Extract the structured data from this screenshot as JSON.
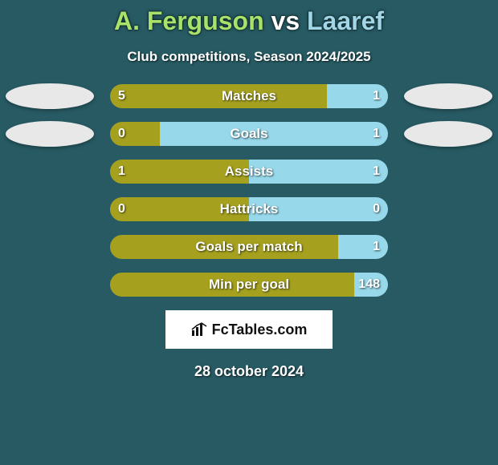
{
  "background_color": "#275a63",
  "title": {
    "player_a": "A. Ferguson",
    "vs": "vs",
    "player_b": "Laaref",
    "color_a": "#a6e36a",
    "color_vs": "#ffffff",
    "color_b": "#a0d6e6"
  },
  "subtitle": "Club competitions, Season 2024/2025",
  "left_color": "#a5a11f",
  "right_color": "#97d8ea",
  "bar_bg_olive": "#a5a11f",
  "bar_bg_blue": "#97d8ea",
  "avatars": {
    "rows_left": [
      0,
      1
    ],
    "rows_right": [
      0,
      1
    ]
  },
  "stats": [
    {
      "label": "Matches",
      "left_val": "5",
      "right_val": "1",
      "left_pct": 78,
      "right_pct": 22
    },
    {
      "label": "Goals",
      "left_val": "0",
      "right_val": "1",
      "left_pct": 18,
      "right_pct": 82
    },
    {
      "label": "Assists",
      "left_val": "1",
      "right_val": "1",
      "left_pct": 50,
      "right_pct": 50
    },
    {
      "label": "Hattricks",
      "left_val": "0",
      "right_val": "0",
      "left_pct": 50,
      "right_pct": 50
    },
    {
      "label": "Goals per match",
      "left_val": "",
      "right_val": "1",
      "left_pct": 82,
      "right_pct": 18
    },
    {
      "label": "Min per goal",
      "left_val": "",
      "right_val": "148",
      "left_pct": 88,
      "right_pct": 12
    }
  ],
  "brand": {
    "icon": "chart-icon",
    "text": "FcTables.com"
  },
  "date": "28 october 2024"
}
